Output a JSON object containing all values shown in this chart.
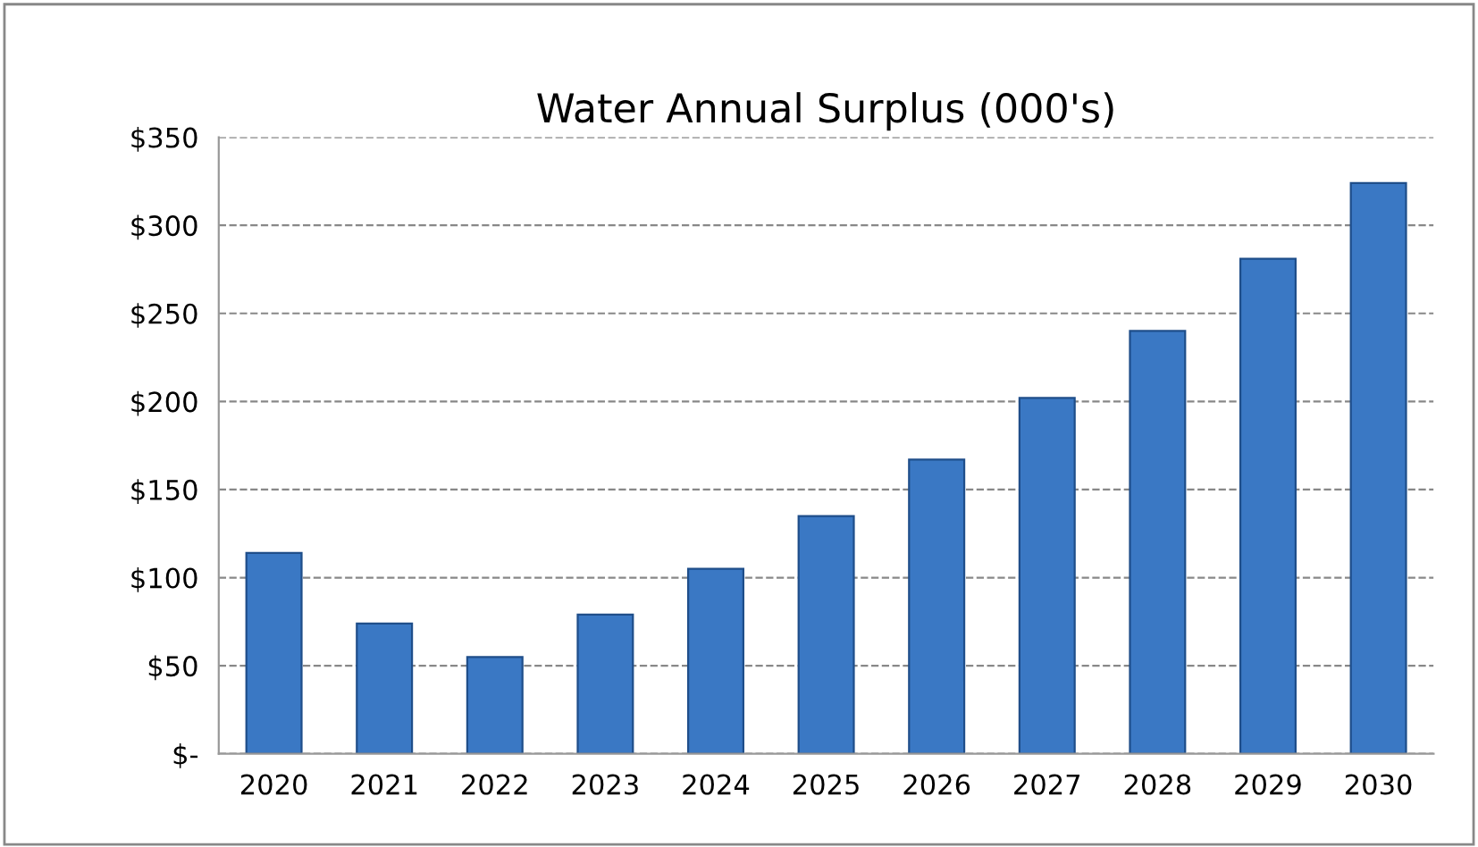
{
  "chart_data": {
    "type": "bar",
    "title": "Water Annual Surplus (000's)",
    "categories": [
      "2020",
      "2021",
      "2022",
      "2023",
      "2024",
      "2025",
      "2026",
      "2027",
      "2028",
      "2029",
      "2030"
    ],
    "values": [
      114,
      74,
      55,
      79,
      105,
      135,
      167,
      202,
      240,
      281,
      324
    ],
    "color": "#3a78c4",
    "ylim": [
      0,
      350
    ],
    "yticks": [
      {
        "value": 0,
        "label": "$-"
      },
      {
        "value": 50,
        "label": "$50"
      },
      {
        "value": 100,
        "label": "$100"
      },
      {
        "value": 150,
        "label": "$150"
      },
      {
        "value": 200,
        "label": "$200"
      },
      {
        "value": 250,
        "label": "$250"
      },
      {
        "value": 300,
        "label": "$300"
      },
      {
        "value": 350,
        "label": "$350"
      }
    ],
    "grid": "y",
    "line_style": "dashed",
    "legend": false
  }
}
